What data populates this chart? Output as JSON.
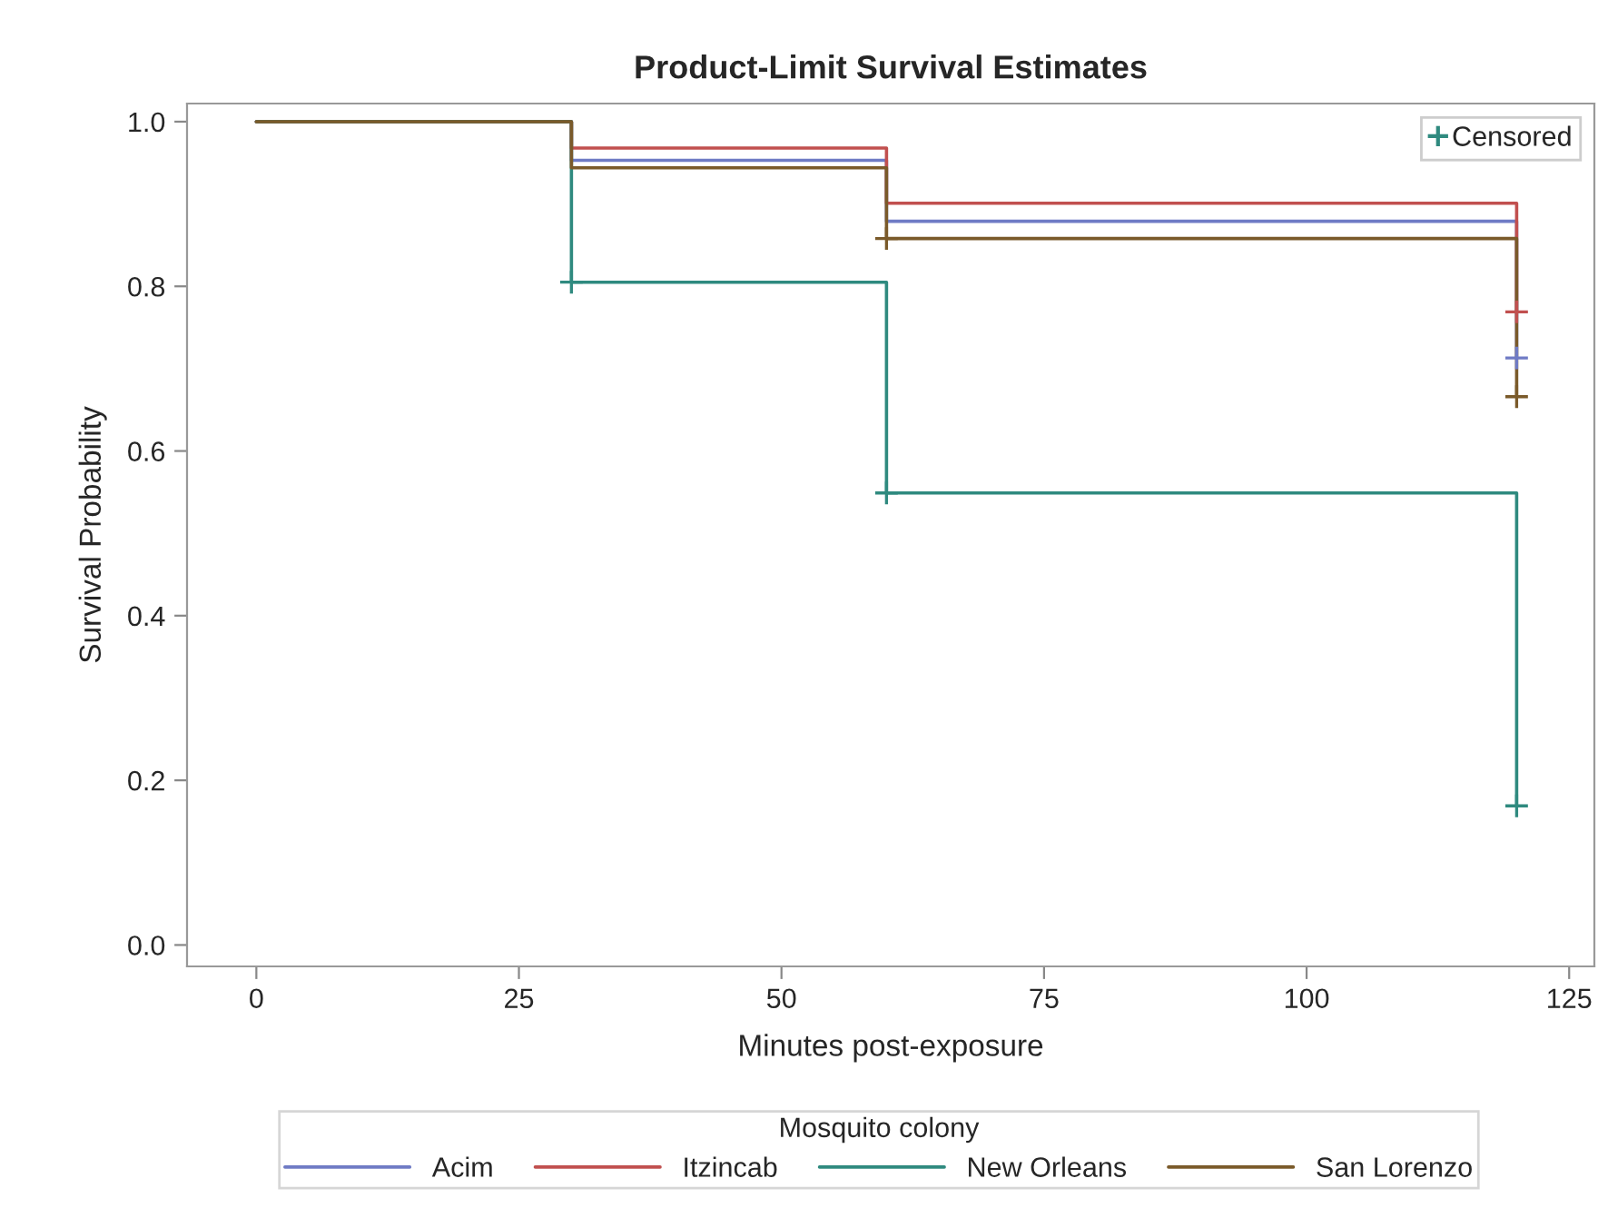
{
  "chart_data": {
    "type": "step",
    "title": "Product-Limit Survival Estimates",
    "xlabel": "Minutes post-exposure",
    "ylabel": "Survival Probability",
    "legend_title": "Mosquito colony",
    "legend": "bottom",
    "grid": false,
    "line_style": "solid",
    "marker": "none",
    "xlim": [
      -6.6,
      127.4
    ],
    "xticks": [
      0,
      25,
      50,
      75,
      100,
      125
    ],
    "ylim": [
      -0.026,
      1.022
    ],
    "yticks": [
      {
        "value": 0,
        "label": "0.0"
      },
      {
        "value": 0.2,
        "label": "0.2"
      },
      {
        "value": 0.4,
        "label": "0.4"
      },
      {
        "value": 0.6,
        "label": "0.6"
      },
      {
        "value": 0.8,
        "label": "0.8"
      },
      {
        "value": 1,
        "label": "1.0"
      }
    ],
    "series": [
      {
        "name": "Acim",
        "color": "#6f7bc5",
        "x": [
          0,
          30,
          60,
          120
        ],
        "values": [
          1,
          0.953,
          0.879,
          0.713
        ]
      },
      {
        "name": "Itzincab",
        "color": "#c1504f",
        "x": [
          0,
          30,
          60,
          120
        ],
        "values": [
          1,
          0.968,
          0.901,
          0.769
        ]
      },
      {
        "name": "New Orleans",
        "color": "#2f8a7f",
        "x": [
          0,
          30,
          60,
          120
        ],
        "values": [
          1,
          0.805,
          0.549,
          0.169
        ]
      },
      {
        "name": "San Lorenzo",
        "color": "#7a5a2a",
        "x": [
          0,
          30,
          60,
          120
        ],
        "values": [
          1,
          0.944,
          0.858,
          0.666
        ]
      },
      {
        "name": "Censored",
        "type": "scatter",
        "marker": "cross",
        "x": [
          30,
          60,
          60,
          120,
          120,
          120,
          120
        ],
        "values": [
          0.805,
          0.549,
          0.858,
          0.769,
          0.713,
          0.666,
          0.169
        ],
        "colors": [
          "#2f8a7f",
          "#2f8a7f",
          "#7a5a2a",
          "#c1504f",
          "#6f7bc5",
          "#7a5a2a",
          "#2f8a7f"
        ]
      }
    ]
  }
}
